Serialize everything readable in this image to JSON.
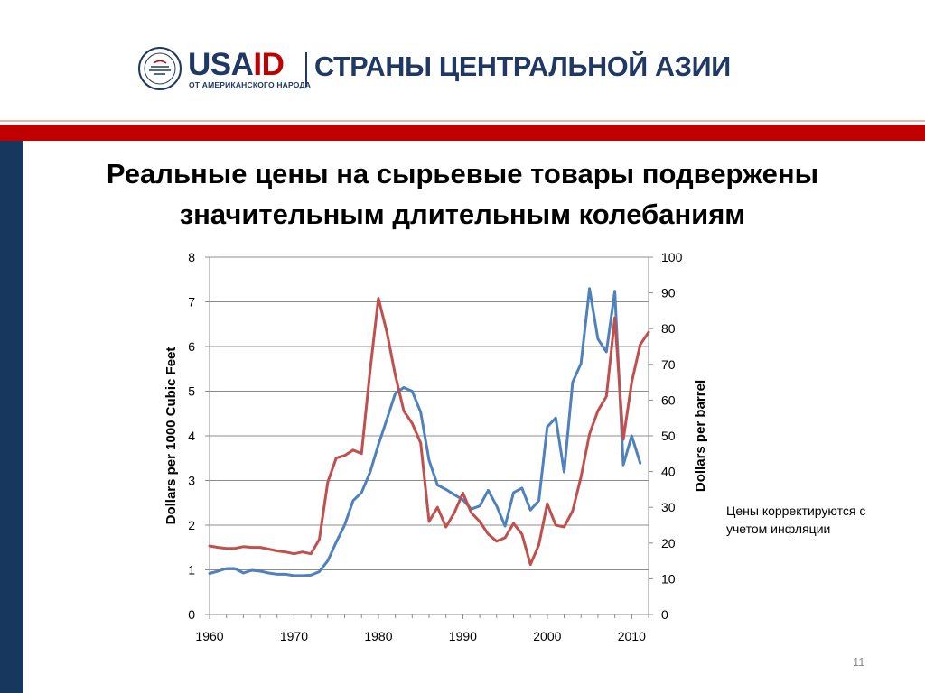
{
  "header": {
    "brand_prefix": "USA",
    "brand_suffix": "ID",
    "brand_tagline": "ОТ АМЕРИКАНСКОГО НАРОДА",
    "region_title": "СТРАНЫ ЦЕНТРАЛЬНОЙ АЗИИ",
    "colors": {
      "navy": "#1f3864",
      "red": "#c00000",
      "side_band": "#17375e"
    }
  },
  "slide": {
    "title_line1": "Реальные цены на сырьевые товары подвержены",
    "title_line2": "значительным длительным колебаниям",
    "note": "Цены корректируются с учетом инфляции",
    "page_number": "11"
  },
  "chart_data": {
    "type": "line",
    "y_left_label": "Dollars per 1000 Cubic Feet",
    "y_right_label": "Dollars per barrel",
    "xlim": [
      1960,
      2012
    ],
    "ylim_left": [
      0,
      8
    ],
    "ylim_right": [
      0,
      100
    ],
    "x_ticks": [
      "1960",
      "1970",
      "1980",
      "1990",
      "2000",
      "2010"
    ],
    "y_left_ticks": [
      "0",
      "1",
      "2",
      "3",
      "4",
      "5",
      "6",
      "7",
      "8"
    ],
    "y_right_ticks": [
      "0",
      "10",
      "20",
      "30",
      "40",
      "50",
      "60",
      "70",
      "80",
      "90",
      "100"
    ],
    "grid": true,
    "series": [
      {
        "axis": "left",
        "color": "#4f81bd",
        "x": [
          1960,
          1961,
          1962,
          1963,
          1964,
          1965,
          1966,
          1967,
          1968,
          1969,
          1970,
          1971,
          1972,
          1973,
          1974,
          1975,
          1976,
          1977,
          1978,
          1979,
          1980,
          1981,
          1982,
          1983,
          1984,
          1985,
          1986,
          1987,
          1988,
          1989,
          1990,
          1991,
          1992,
          1993,
          1994,
          1995,
          1996,
          1997,
          1998,
          1999,
          2000,
          2001,
          2002,
          2003,
          2004,
          2005,
          2006,
          2007,
          2008,
          2009,
          2010,
          2011
        ],
        "values": [
          0.92,
          0.97,
          1.03,
          1.03,
          0.93,
          0.99,
          0.97,
          0.93,
          0.9,
          0.9,
          0.87,
          0.87,
          0.88,
          0.96,
          1.2,
          1.62,
          2.0,
          2.55,
          2.73,
          3.18,
          3.8,
          4.37,
          4.95,
          5.08,
          5.0,
          4.53,
          3.45,
          2.9,
          2.8,
          2.68,
          2.57,
          2.36,
          2.43,
          2.78,
          2.43,
          1.98,
          2.73,
          2.83,
          2.34,
          2.55,
          4.2,
          4.4,
          3.19,
          5.2,
          5.62,
          7.3,
          6.17,
          5.88,
          7.24,
          3.35,
          4.0,
          3.39
        ]
      },
      {
        "axis": "right",
        "color": "#c0504d",
        "x": [
          1960,
          1961,
          1962,
          1963,
          1964,
          1965,
          1966,
          1967,
          1968,
          1969,
          1970,
          1971,
          1972,
          1973,
          1974,
          1975,
          1976,
          1977,
          1978,
          1979,
          1980,
          1981,
          1982,
          1983,
          1984,
          1985,
          1986,
          1987,
          1988,
          1989,
          1990,
          1991,
          1992,
          1993,
          1994,
          1995,
          1996,
          1997,
          1998,
          1999,
          2000,
          2001,
          2002,
          2003,
          2004,
          2005,
          2006,
          2007,
          2008,
          2009,
          2010,
          2011,
          2012
        ],
        "values": [
          19.2,
          18.8,
          18.5,
          18.5,
          19.0,
          18.8,
          18.8,
          18.3,
          17.8,
          17.5,
          17.0,
          17.5,
          17.0,
          21.0,
          37.0,
          43.8,
          44.5,
          46.0,
          45.0,
          68.0,
          88.5,
          79.0,
          67.0,
          57.0,
          53.5,
          48.0,
          26.0,
          30.0,
          24.5,
          28.5,
          34.0,
          28.5,
          26.0,
          22.5,
          20.5,
          21.5,
          25.5,
          22.5,
          14.0,
          19.5,
          31.0,
          25.0,
          24.5,
          29.0,
          38.5,
          50.5,
          57.0,
          61.0,
          83.0,
          49.0,
          65.0,
          75.5,
          79.0
        ]
      }
    ]
  }
}
